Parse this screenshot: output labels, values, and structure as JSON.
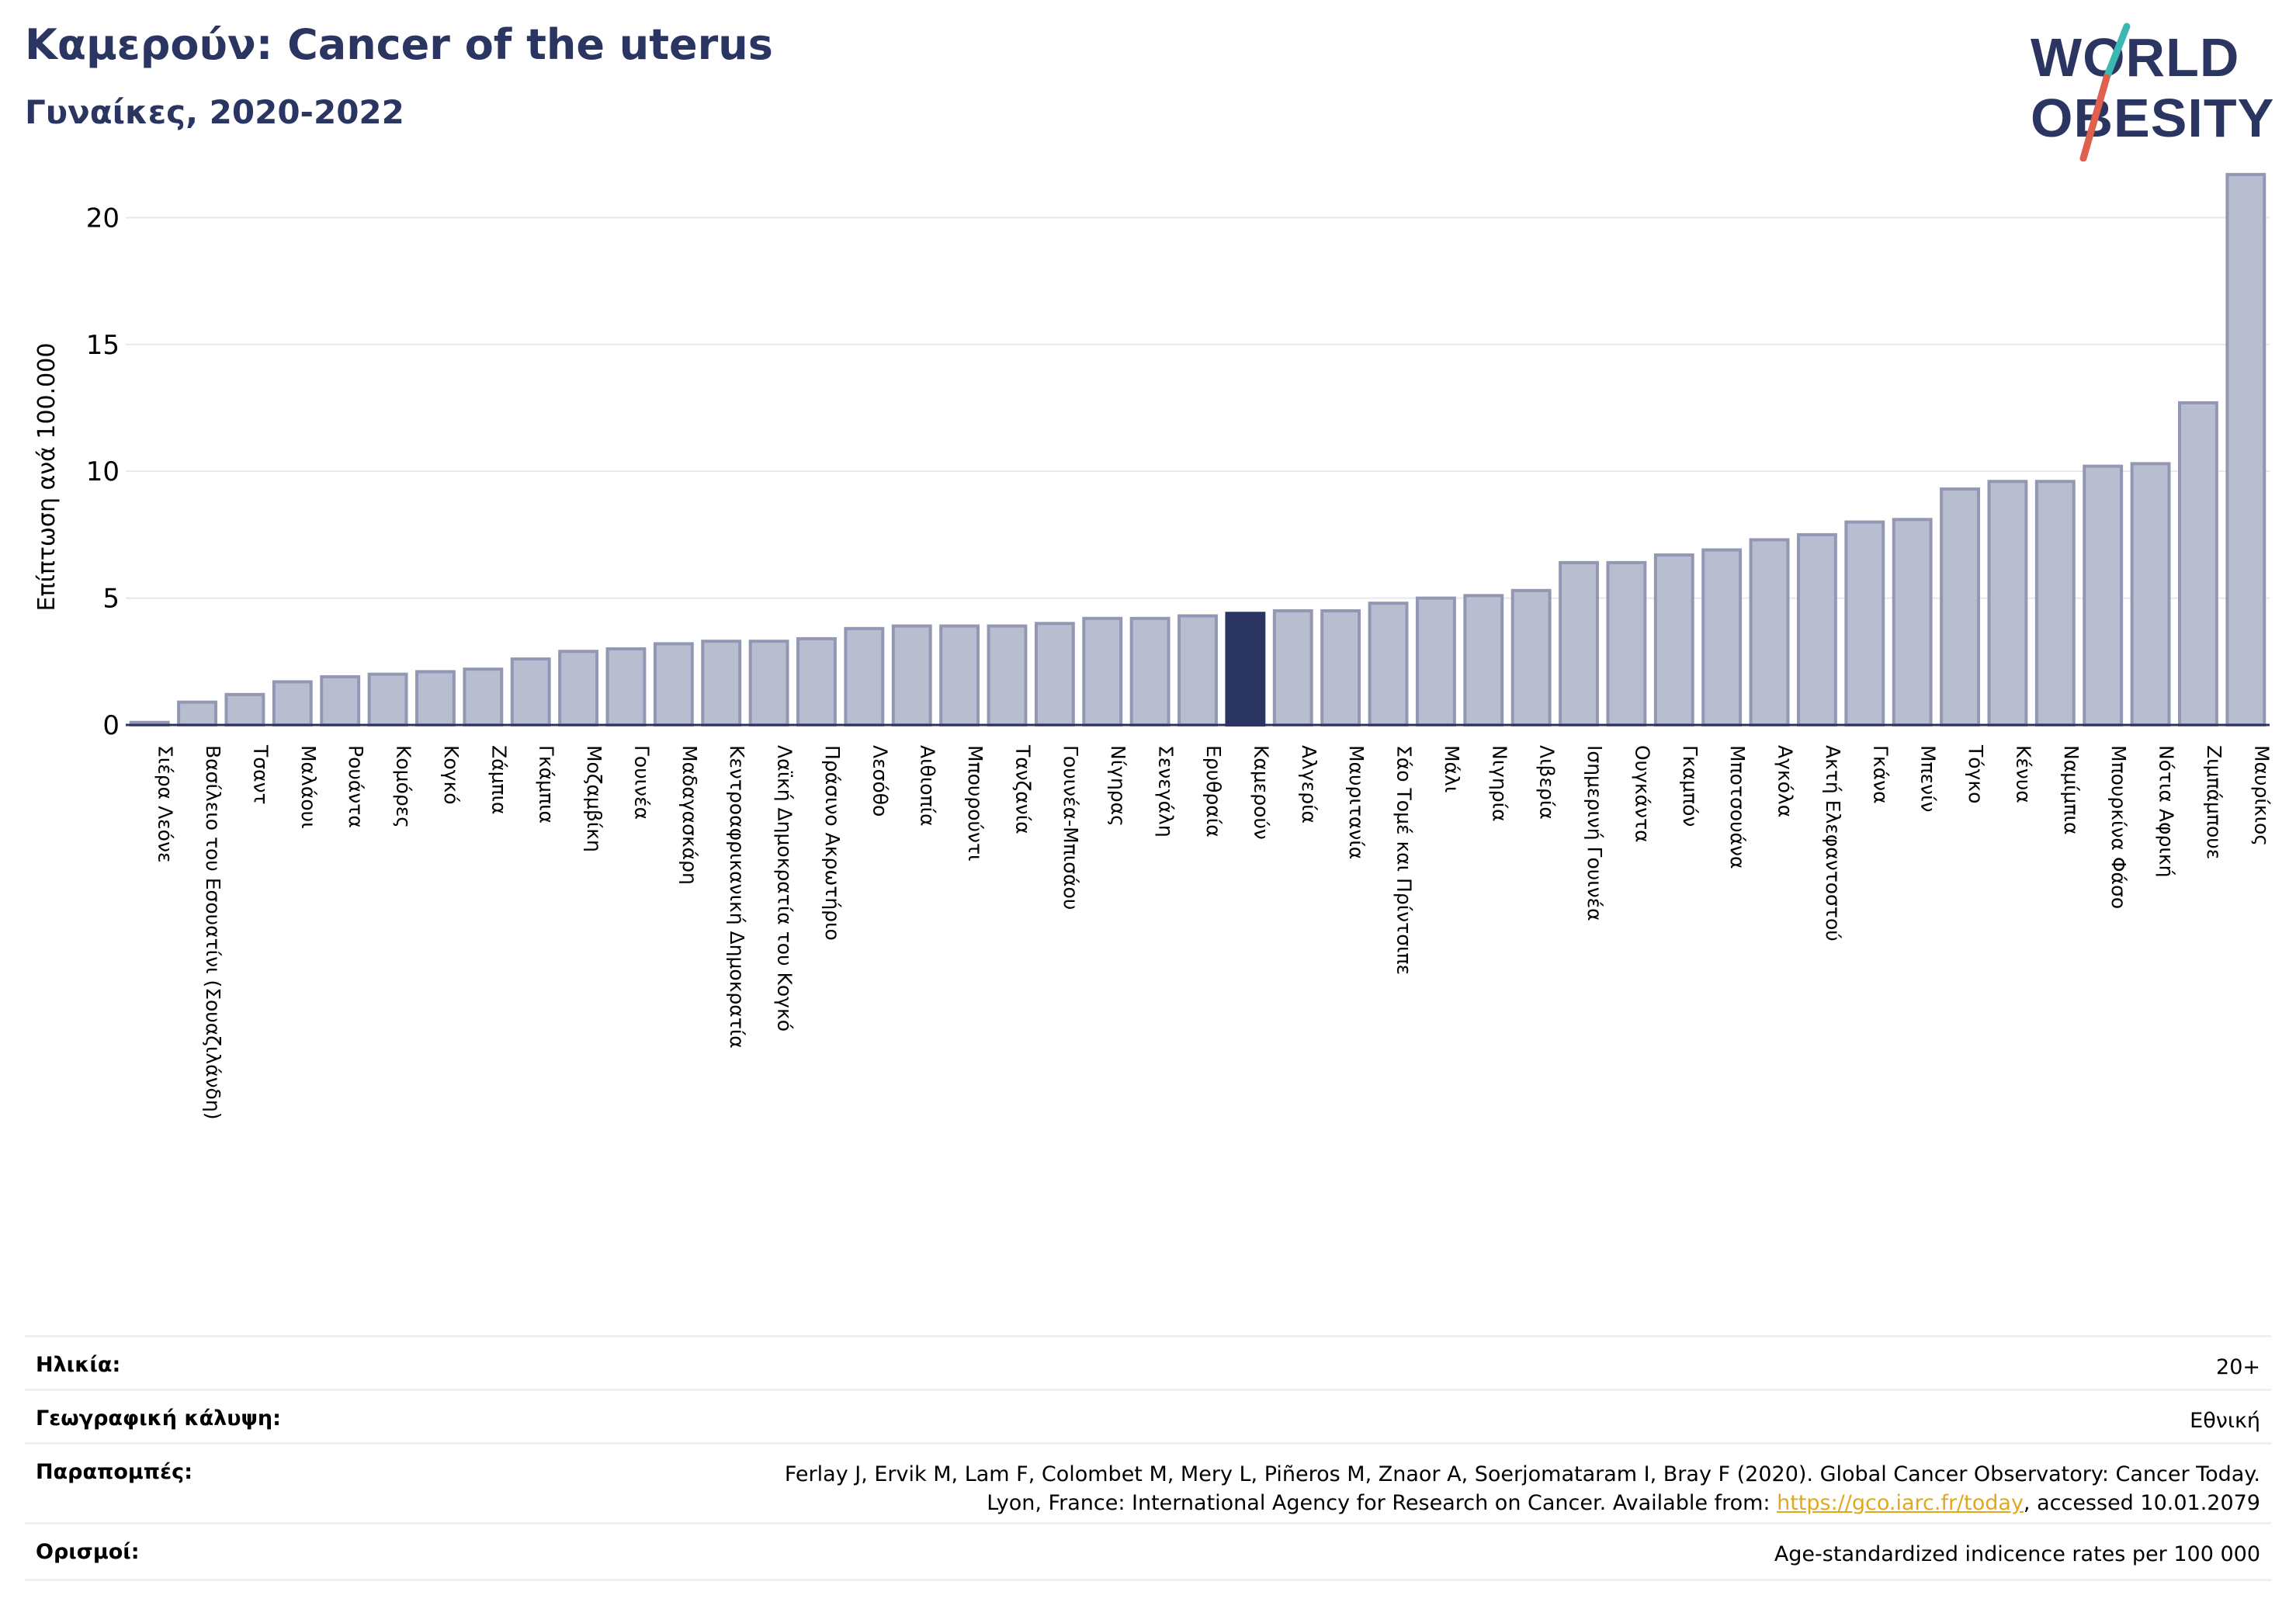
{
  "header": {
    "title": "Καμερούν: Cancer of the uterus",
    "subtitle": "Γυναίκες, 2020-2022"
  },
  "logo": {
    "text_line1": "WORLD",
    "text_line2": "OBESITY",
    "colors": {
      "text": "#2b3561",
      "slash_teal": "#3bb8b2",
      "slash_red": "#e0604f"
    }
  },
  "chart_data": {
    "type": "bar",
    "ylabel": "Επίπτωση ανά 100.000",
    "xlabel": "",
    "ylim": [
      0,
      22
    ],
    "yticks": [
      0,
      5,
      10,
      15,
      20
    ],
    "grid": true,
    "highlight": "Καμερούν",
    "colors": {
      "bar": "#b9bdd0",
      "bar_edge": "#9297b3",
      "highlight": "#2b3561",
      "axis": "#2b3561",
      "grid": "#e6e8ee"
    },
    "categories": [
      "Σιέρα Λεόνε",
      "Βασίλειο του Εσουατίνι (Σουαζιλάνδη)",
      "Τσαντ",
      "Μαλάουι",
      "Ρουάντα",
      "Κομόρες",
      "Κογκό",
      "Ζάμπια",
      "Γκάμπια",
      "Μοζαμβίκη",
      "Γουινέα",
      "Μαδαγασκάρη",
      "Κεντροαφρικανική Δημοκρατία",
      "Λαϊκή Δημοκρατία του Κογκό",
      "Πράσινο Ακρωτήριο",
      "Λεσόθο",
      "Αιθιοπία",
      "Μπουρούντι",
      "Τανζανία",
      "Γουινέα-Μπισάου",
      "Νίγηρας",
      "Σενεγάλη",
      "Ερυθραία",
      "Καμερούν",
      "Αλγερία",
      "Μαυριτανία",
      "Σάο Τομέ και Πρίντσιπε",
      "Μάλι",
      "Νιγηρία",
      "Λιβερία",
      "Ισημερινή Γουινέα",
      "Ουγκάντα",
      "Γκαμπόν",
      "Μποτσουάνα",
      "Αγκόλα",
      "Ακτή Ελεφαντοστού",
      "Γκάνα",
      "Μπενίν",
      "Τόγκο",
      "Κένυα",
      "Ναμίμπια",
      "Μπουρκίνα Φάσο",
      "Νότια Αφρική",
      "Ζιμπάμπουε",
      "Μαυρίκιος"
    ],
    "values": [
      0.1,
      0.9,
      1.2,
      1.7,
      1.9,
      2.0,
      2.1,
      2.2,
      2.6,
      2.9,
      3.0,
      3.2,
      3.3,
      3.3,
      3.4,
      3.8,
      3.9,
      3.9,
      3.9,
      4.0,
      4.2,
      4.2,
      4.3,
      4.4,
      4.5,
      4.5,
      4.8,
      5.0,
      5.1,
      5.3,
      6.4,
      6.4,
      6.7,
      6.9,
      7.3,
      7.5,
      8.0,
      8.1,
      9.3,
      9.6,
      9.6,
      10.2,
      10.3,
      12.7,
      21.7
    ]
  },
  "meta": {
    "age_label": "Ηλικία:",
    "age_value": "20+",
    "coverage_label": "Γεωγραφική κάλυψη:",
    "coverage_value": "Εθνική",
    "refs_label": "Παραπομπές:",
    "refs_line1": "Ferlay J, Ervik M, Lam F, Colombet M, Mery L, Piñeros M, Znaor A, Soerjomataram I, Bray F (2020). Global Cancer Observatory: Cancer Today.",
    "refs_line2_pre": "Lyon, France: International Agency for Research on Cancer. Available from: ",
    "refs_link": "https://gco.iarc.fr/today",
    "refs_line2_post": ", accessed 10.01.2079",
    "defs_label": "Ορισμοί:",
    "defs_value": "Age-standardized indicence rates per 100 000"
  }
}
